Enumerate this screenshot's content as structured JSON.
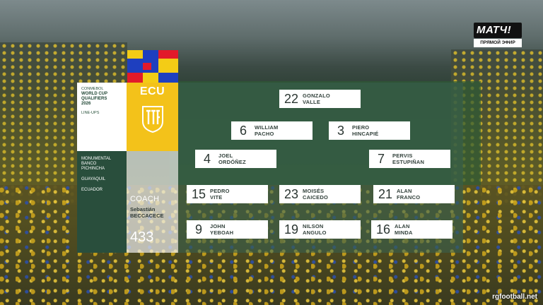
{
  "broadcaster": {
    "logo_text": "МАТЧ!",
    "live_label": "ПРЯМОЙ ЭФИР"
  },
  "event": {
    "org": "CONMEBOL",
    "title_line1": "WORLD CUP",
    "title_line2": "QUALIFIERS",
    "title_line3": "2026",
    "subtitle": "LINE-UPS"
  },
  "venue": {
    "line1": "MONUMENTAL",
    "line2": "BANCO",
    "line3": "PICHINCHA",
    "city": "GUAYAQUIL",
    "country": "ECUADOR"
  },
  "team": {
    "code": "ECU",
    "crest": "ecuador-federation-crest",
    "color": "#f3c21a"
  },
  "coach": {
    "label": "COACH",
    "first": "Sebastián",
    "last": "BECCACECE",
    "formation": "433"
  },
  "players": [
    {
      "number": "22",
      "first": "GONZALO",
      "last": "VALLE"
    },
    {
      "number": "6",
      "first": "WILLIAM",
      "last": "PACHO"
    },
    {
      "number": "3",
      "first": "PIERO",
      "last": "HINCAPIÉ"
    },
    {
      "number": "4",
      "first": "JOEL",
      "last": "ORDÓÑEZ"
    },
    {
      "number": "7",
      "first": "PERVIS",
      "last": "ESTUPIÑAN"
    },
    {
      "number": "15",
      "first": "PEDRO",
      "last": "VITE"
    },
    {
      "number": "23",
      "first": "MOISÉS",
      "last": "CAICEDO"
    },
    {
      "number": "21",
      "first": "ALAN",
      "last": "FRANCO"
    },
    {
      "number": "9",
      "first": "JOHN",
      "last": "YEBOAH"
    },
    {
      "number": "19",
      "first": "NILSON",
      "last": "ANGULO"
    },
    {
      "number": "16",
      "first": "ALAN",
      "last": "MINDA"
    }
  ],
  "watermark": "rgfootball.net"
}
